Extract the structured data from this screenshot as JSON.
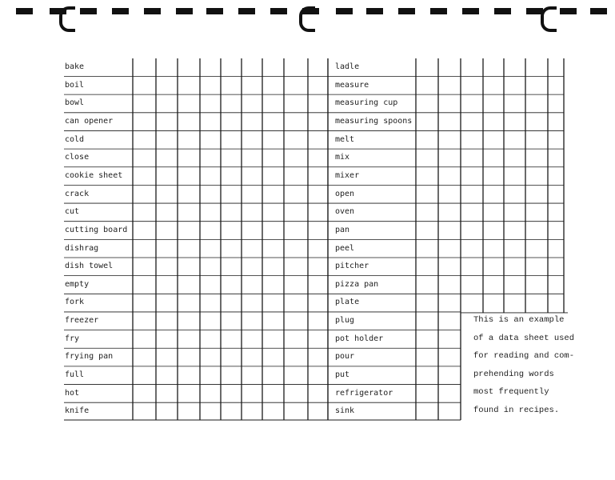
{
  "left_words": [
    "bake",
    "boil",
    "bowl",
    "can opener",
    "cold",
    "close",
    "cookie sheet",
    "crack",
    "cut",
    "cutting board",
    "dishrag",
    "dish towel",
    "empty",
    "fork",
    "freezer",
    "fry",
    "frying pan",
    "full",
    "hot",
    "knife"
  ],
  "right_words": [
    "ladle",
    "measure",
    "measuring cup",
    "measuring spoons",
    "melt",
    "mix",
    "mixer",
    "open",
    "oven",
    "pan",
    "peel",
    "pitcher",
    "pizza pan",
    "plate",
    "plug",
    "pot holder",
    "pour",
    "put",
    "refrigerator",
    "sink"
  ],
  "note_lines": [
    "This is an example",
    "of a data sheet used",
    "for reading and com-",
    "prehending words",
    "most frequently",
    "found in recipes."
  ]
}
